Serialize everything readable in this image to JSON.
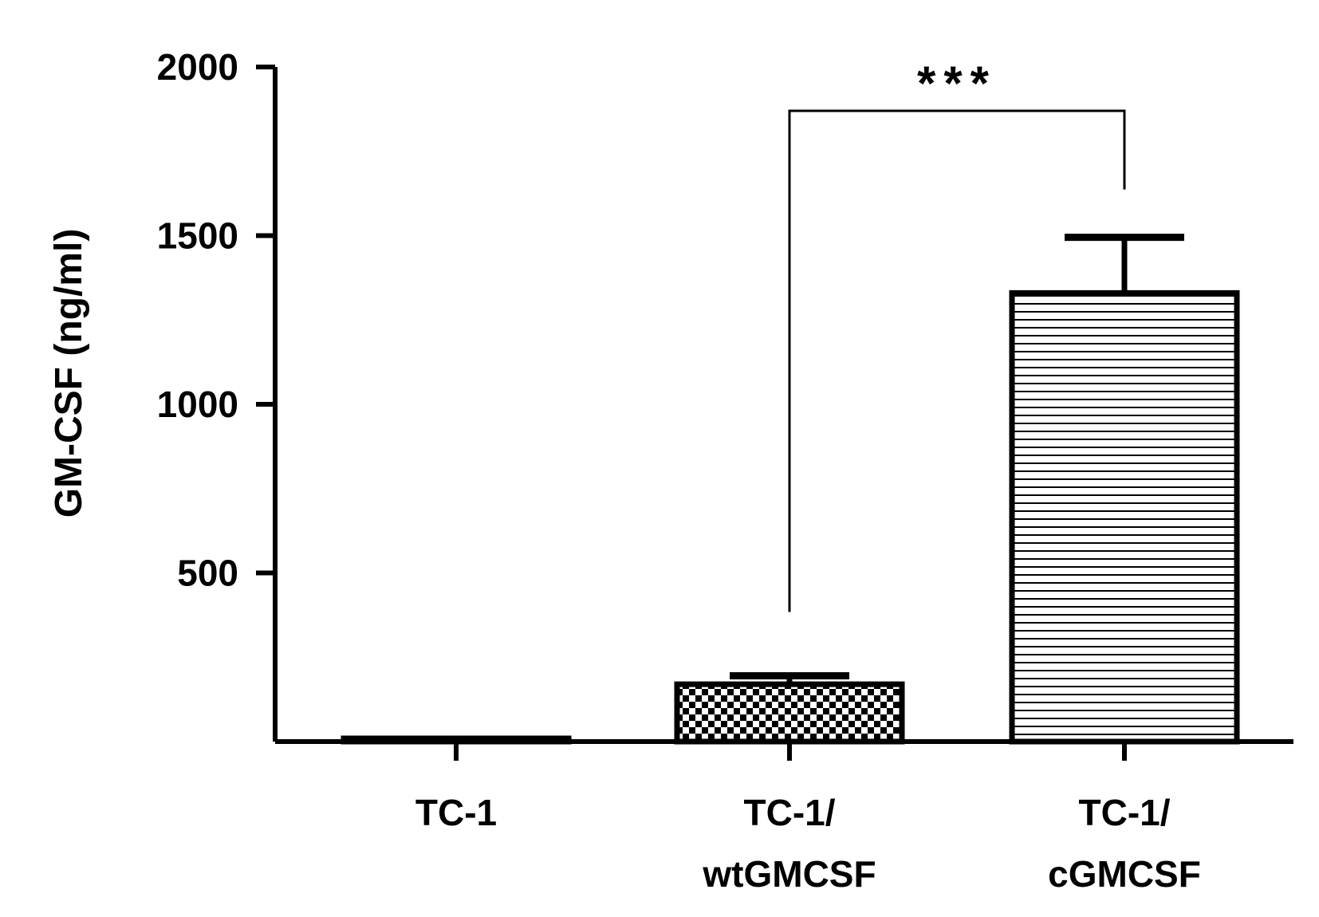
{
  "chart_data": {
    "type": "bar",
    "title": "",
    "xlabel": "",
    "ylabel": "GM-CSF (ng/ml)",
    "ylim": [
      0,
      2000
    ],
    "yticks": [
      500,
      1000,
      1500,
      2000
    ],
    "ytick_labels": [
      "500",
      "1000",
      "1500",
      "2000"
    ],
    "grid": false,
    "categories": [
      {
        "line1": "TC-1",
        "line2": ""
      },
      {
        "line1": "TC-1/",
        "line2": "wtGMCSF"
      },
      {
        "line1": "TC-1/",
        "line2": "cGMCSF"
      }
    ],
    "values": [
      5,
      170,
      1330
    ],
    "errors": [
      0,
      25,
      165
    ],
    "patterns": [
      "solid",
      "checker",
      "hlines"
    ],
    "significance": {
      "from": 1,
      "to": 2,
      "label": "***",
      "y": 1870
    }
  }
}
